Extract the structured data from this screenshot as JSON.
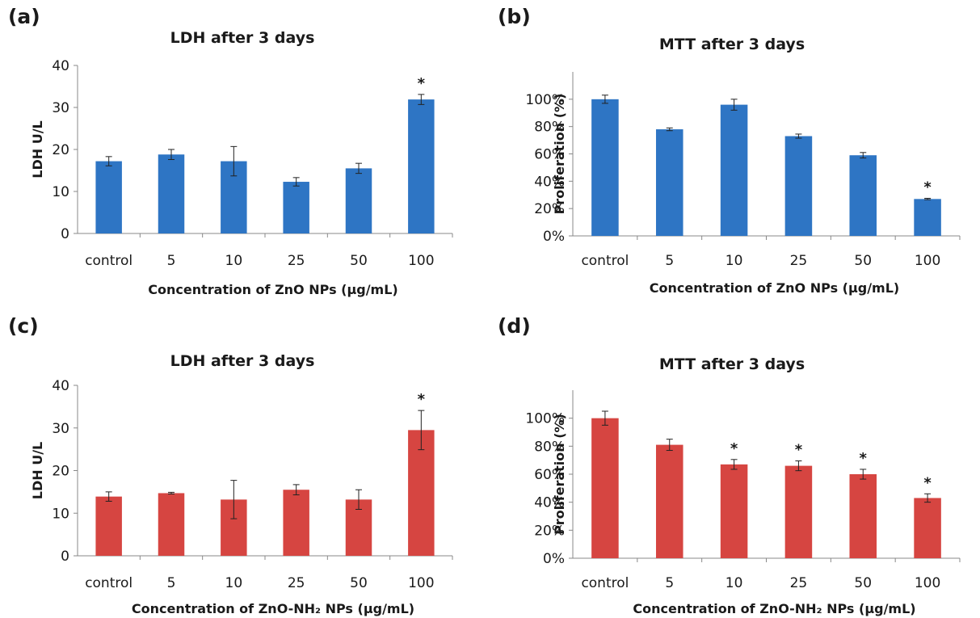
{
  "chart_data": [
    {
      "panel_label": "(a)",
      "type": "bar",
      "title": "LDH after 3 days",
      "xlabel": "Concentration of ZnO NPs (μg/mL)",
      "ylabel": "LDH U/L",
      "categories": [
        "control",
        "5",
        "10",
        "25",
        "50",
        "100"
      ],
      "values": [
        17.2,
        18.8,
        17.2,
        12.3,
        15.5,
        31.9
      ],
      "errors": [
        1.1,
        1.2,
        3.5,
        1.0,
        1.2,
        1.2
      ],
      "significance": [
        "",
        "",
        "",
        "",
        "",
        "*"
      ],
      "ylim": [
        0,
        40
      ],
      "yticks": [
        0,
        10,
        20,
        30,
        40
      ],
      "ytick_labels": [
        "0",
        "10",
        "20",
        "30",
        "40"
      ],
      "bar_color": "#2e75c4",
      "grid": false
    },
    {
      "panel_label": "(b)",
      "type": "bar",
      "title": "MTT after 3 days",
      "xlabel": "Concentration of ZnO NPs (μg/mL)",
      "ylabel": "Proliferation (%)",
      "categories": [
        "control",
        "5",
        "10",
        "25",
        "50",
        "100"
      ],
      "values": [
        100,
        78,
        96,
        73,
        59,
        27
      ],
      "errors": [
        3,
        1,
        4,
        1.5,
        2,
        0.5
      ],
      "significance": [
        "",
        "",
        "",
        "",
        "",
        "*"
      ],
      "ylim": [
        0,
        120
      ],
      "yticks": [
        0,
        20,
        40,
        60,
        80,
        100
      ],
      "ytick_labels": [
        "0%",
        "20%",
        "40%",
        "60%",
        "80%",
        "100%"
      ],
      "bar_color": "#2e75c4",
      "grid": false
    },
    {
      "panel_label": "(c)",
      "type": "bar",
      "title": "LDH after 3 days",
      "xlabel": "Concentration of ZnO-NH₂ NPs (μg/mL)",
      "ylabel": "LDH U/L",
      "categories": [
        "control",
        "5",
        "10",
        "25",
        "50",
        "100"
      ],
      "values": [
        13.9,
        14.7,
        13.2,
        15.5,
        13.2,
        29.5
      ],
      "errors": [
        1.1,
        0.2,
        4.5,
        1.2,
        2.3,
        4.6
      ],
      "significance": [
        "",
        "",
        "",
        "",
        "",
        "*"
      ],
      "ylim": [
        0,
        40
      ],
      "yticks": [
        0,
        10,
        20,
        30,
        40
      ],
      "ytick_labels": [
        "0",
        "10",
        "20",
        "30",
        "40"
      ],
      "bar_color": "#d64541",
      "grid": false
    },
    {
      "panel_label": "(d)",
      "type": "bar",
      "title": "MTT  after 3 days",
      "xlabel": "Concentration of ZnO-NH₂ NPs (μg/mL)",
      "ylabel": "Proliferation (%)",
      "categories": [
        "control",
        "5",
        "10",
        "25",
        "50",
        "100"
      ],
      "values": [
        100,
        81,
        67,
        66,
        60,
        43
      ],
      "errors": [
        5,
        4,
        3.5,
        3.5,
        3.5,
        3
      ],
      "significance": [
        "",
        "",
        "*",
        "*",
        "*",
        "*"
      ],
      "ylim": [
        0,
        120
      ],
      "yticks": [
        0,
        20,
        40,
        60,
        80,
        100
      ],
      "ytick_labels": [
        "0%",
        "20%",
        "40%",
        "60%",
        "80%",
        "100%"
      ],
      "bar_color": "#d64541",
      "grid": false
    }
  ]
}
